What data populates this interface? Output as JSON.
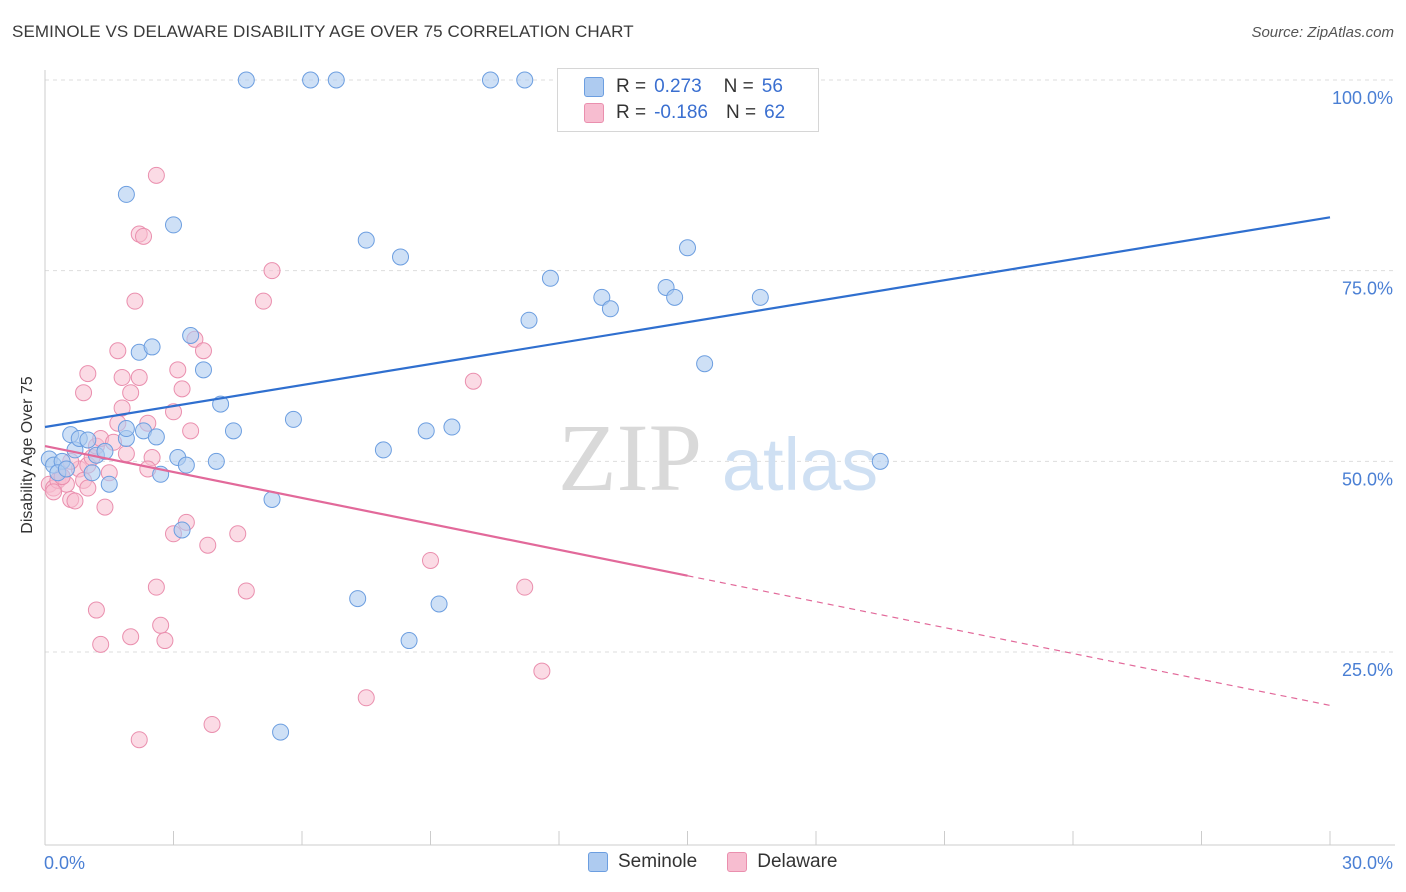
{
  "header": {
    "title": "SEMINOLE VS DELAWARE DISABILITY AGE OVER 75 CORRELATION CHART",
    "source": "Source: ZipAtlas.com"
  },
  "watermark": {
    "zip": "ZIP",
    "atlas": "atlas"
  },
  "legend": {
    "r_label": "R =",
    "n_label": "N =",
    "seminole": {
      "r": "0.273",
      "n": "56"
    },
    "delaware": {
      "r": "-0.186",
      "n": "62"
    }
  },
  "colors": {
    "seminole_fill": "#aecbf0",
    "seminole_stroke": "#6c9ee0",
    "seminole_line": "#2f6fcf",
    "delaware_fill": "#f7bdd0",
    "delaware_stroke": "#ea8fae",
    "delaware_line": "#e2699a",
    "tick_text": "#4a7fd4",
    "grid": "#dddddd"
  },
  "chart_data": {
    "type": "scatter",
    "title": "SEMINOLE VS DELAWARE DISABILITY AGE OVER 75 CORRELATION CHART",
    "xlabel": "",
    "ylabel": "Disability Age Over 75",
    "xlim": [
      0,
      30
    ],
    "ylim": [
      0,
      105
    ],
    "x_tick_labels": [
      "0.0%",
      "30.0%"
    ],
    "y_ticks": [
      25,
      50,
      75,
      100
    ],
    "y_tick_labels": [
      "25.0%",
      "50.0%",
      "75.0%",
      "100.0%"
    ],
    "grid": true,
    "legend_position": "top-center",
    "series": [
      {
        "name": "Seminole",
        "r": 0.273,
        "n": 56,
        "trend": {
          "x": [
            0,
            30
          ],
          "y": [
            54.5,
            82
          ]
        },
        "points": [
          [
            0.1,
            50.3
          ],
          [
            0.2,
            49.5
          ],
          [
            0.4,
            50.0
          ],
          [
            0.6,
            53.5
          ],
          [
            0.7,
            51.5
          ],
          [
            0.8,
            53.0
          ],
          [
            1.0,
            52.8
          ],
          [
            1.1,
            48.5
          ],
          [
            1.2,
            50.8
          ],
          [
            1.4,
            51.3
          ],
          [
            1.5,
            47.0
          ],
          [
            1.9,
            53.0
          ],
          [
            2.2,
            64.3
          ],
          [
            2.5,
            65.0
          ],
          [
            2.7,
            48.3
          ],
          [
            3.1,
            50.5
          ],
          [
            3.3,
            49.5
          ],
          [
            3.4,
            66.5
          ],
          [
            3.7,
            62.0
          ],
          [
            4.0,
            50.0
          ],
          [
            4.1,
            57.5
          ],
          [
            4.4,
            54.0
          ],
          [
            1.9,
            54.3
          ],
          [
            2.3,
            54.0
          ],
          [
            2.6,
            53.2
          ],
          [
            3.2,
            41.0
          ],
          [
            1.9,
            85.0
          ],
          [
            3.0,
            81.0
          ],
          [
            4.7,
            100.0
          ],
          [
            5.3,
            45.0
          ],
          [
            5.8,
            55.5
          ],
          [
            6.2,
            100.0
          ],
          [
            6.8,
            100.0
          ],
          [
            7.3,
            32.0
          ],
          [
            7.5,
            79.0
          ],
          [
            7.9,
            51.5
          ],
          [
            8.3,
            76.8
          ],
          [
            8.5,
            26.5
          ],
          [
            8.9,
            54.0
          ],
          [
            9.2,
            31.3
          ],
          [
            9.5,
            54.5
          ],
          [
            10.4,
            100.0
          ],
          [
            11.2,
            100.0
          ],
          [
            11.3,
            68.5
          ],
          [
            11.8,
            74.0
          ],
          [
            13.0,
            71.5
          ],
          [
            13.2,
            70.0
          ],
          [
            14.5,
            72.8
          ],
          [
            14.7,
            71.5
          ],
          [
            15.0,
            78.0
          ],
          [
            15.4,
            62.8
          ],
          [
            16.7,
            71.5
          ],
          [
            19.5,
            50.0
          ],
          [
            5.5,
            14.5
          ],
          [
            0.3,
            48.5
          ],
          [
            0.5,
            49.0
          ]
        ]
      },
      {
        "name": "Delaware",
        "r": -0.186,
        "n": 62,
        "trend": {
          "x": [
            0,
            15
          ],
          "y": [
            52.0,
            35.0
          ]
        },
        "trend_dashed": {
          "x": [
            15,
            30
          ],
          "y": [
            35.0,
            18.0
          ]
        },
        "points": [
          [
            0.1,
            47.0
          ],
          [
            0.2,
            46.5
          ],
          [
            0.3,
            47.5
          ],
          [
            0.4,
            48.0
          ],
          [
            0.5,
            47.0
          ],
          [
            0.6,
            45.0
          ],
          [
            0.7,
            44.8
          ],
          [
            0.8,
            49.0
          ],
          [
            0.9,
            47.5
          ],
          [
            1.0,
            49.5
          ],
          [
            1.1,
            50.5
          ],
          [
            1.2,
            52.0
          ],
          [
            1.3,
            53.0
          ],
          [
            1.4,
            44.0
          ],
          [
            1.5,
            48.5
          ],
          [
            1.6,
            52.5
          ],
          [
            1.7,
            55.0
          ],
          [
            1.8,
            57.0
          ],
          [
            2.0,
            59.0
          ],
          [
            2.2,
            61.0
          ],
          [
            0.9,
            59.0
          ],
          [
            1.0,
            61.5
          ],
          [
            1.2,
            30.5
          ],
          [
            1.7,
            64.5
          ],
          [
            1.8,
            61.0
          ],
          [
            1.3,
            26.0
          ],
          [
            2.1,
            71.0
          ],
          [
            2.2,
            79.8
          ],
          [
            2.3,
            79.5
          ],
          [
            2.4,
            55.0
          ],
          [
            2.5,
            50.5
          ],
          [
            2.6,
            33.5
          ],
          [
            2.7,
            28.5
          ],
          [
            2.8,
            26.5
          ],
          [
            3.0,
            56.5
          ],
          [
            3.1,
            62.0
          ],
          [
            3.2,
            59.5
          ],
          [
            3.3,
            42.0
          ],
          [
            3.4,
            54.0
          ],
          [
            3.5,
            66.0
          ],
          [
            3.7,
            64.5
          ],
          [
            3.8,
            39.0
          ],
          [
            3.9,
            15.5
          ],
          [
            4.5,
            40.5
          ],
          [
            4.7,
            33.0
          ],
          [
            5.1,
            71.0
          ],
          [
            5.3,
            75.0
          ],
          [
            2.0,
            27.0
          ],
          [
            2.2,
            13.5
          ],
          [
            3.0,
            40.5
          ],
          [
            2.6,
            87.5
          ],
          [
            7.5,
            19.0
          ],
          [
            9.0,
            37.0
          ],
          [
            10.0,
            60.5
          ],
          [
            11.2,
            33.5
          ],
          [
            11.6,
            22.5
          ],
          [
            0.2,
            46.0
          ],
          [
            0.4,
            48.0
          ],
          [
            0.6,
            50.0
          ],
          [
            1.9,
            51.0
          ],
          [
            2.4,
            49.0
          ],
          [
            1.0,
            46.5
          ]
        ]
      }
    ]
  },
  "bottom_legend": {
    "seminole_label": "Seminole",
    "delaware_label": "Delaware"
  }
}
